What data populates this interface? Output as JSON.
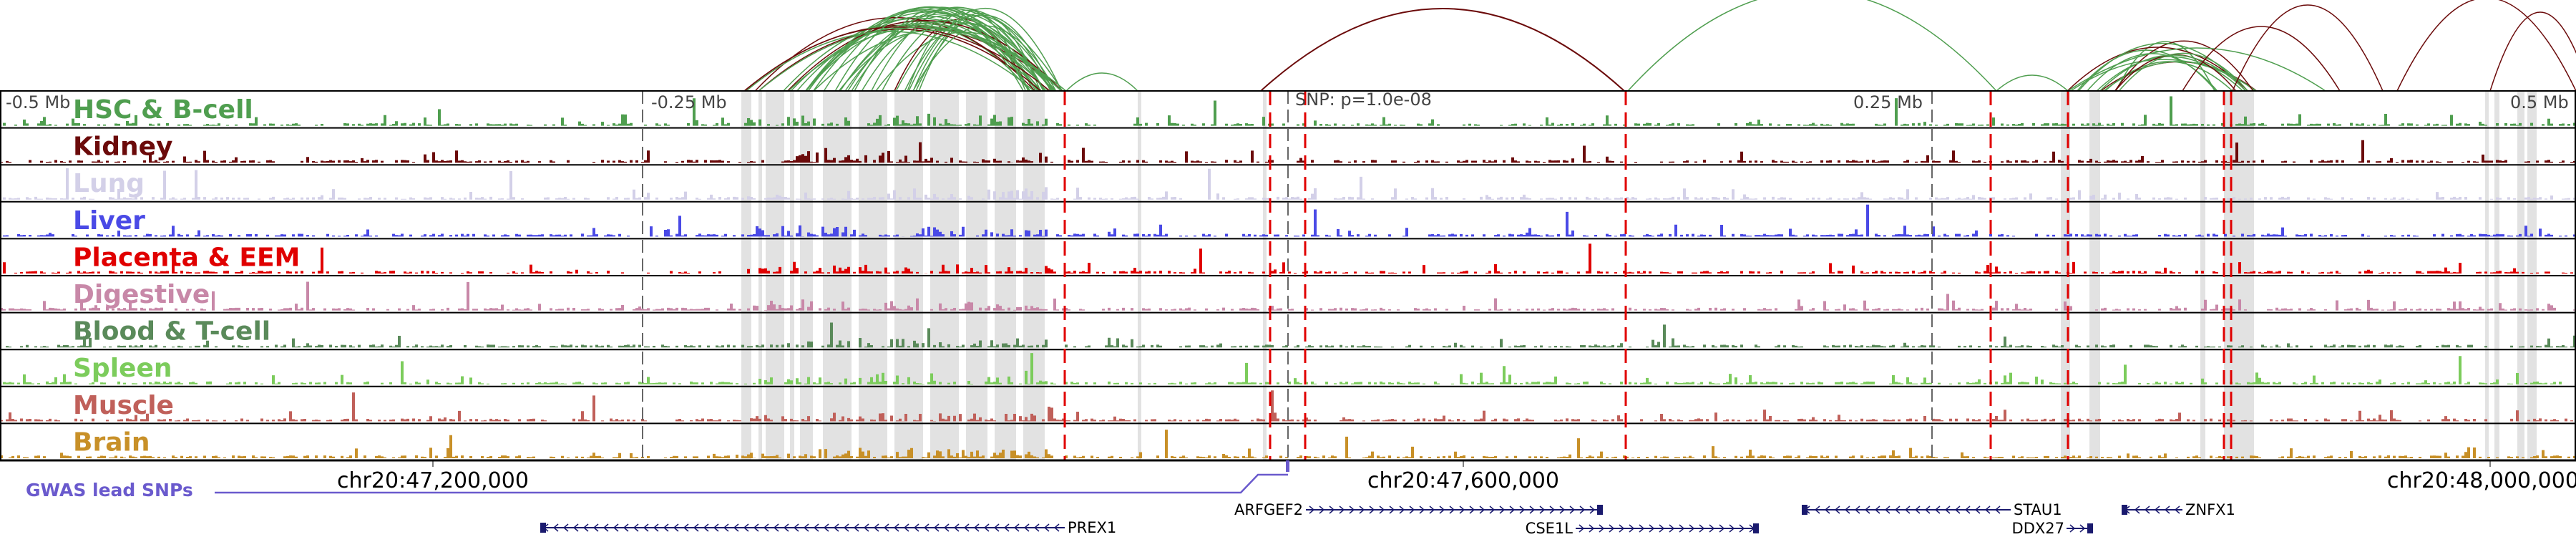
{
  "tracks": [
    {
      "name": "HSC & B-cell",
      "color": "#4f9e4f"
    },
    {
      "name": "Kidney",
      "color": "#6b0a0a"
    },
    {
      "name": "Lung",
      "color": "#d3d0e8"
    },
    {
      "name": "Liver",
      "color": "#4a4ae6"
    },
    {
      "name": "Placenta & EEM",
      "color": "#e00000"
    },
    {
      "name": "Digestive",
      "color": "#c888a8"
    },
    {
      "name": "Blood & T-cell",
      "color": "#5a8a5a"
    },
    {
      "name": "Spleen",
      "color": "#7ccc5c"
    },
    {
      "name": "Muscle",
      "color": "#c0605a"
    },
    {
      "name": "Brain",
      "color": "#c89028"
    }
  ],
  "distance_labels": [
    "-0.5 Mb",
    "-0.25 Mb",
    "0.25 Mb",
    "0.5 Mb"
  ],
  "snp_label": "SNP: p=1.0e-08",
  "coordinates": [
    "chr20:47,200,000",
    "chr20:47,600,000",
    "chr20:48,000,000"
  ],
  "gwas_label": "GWAS lead SNPs",
  "genes": [
    "PREX1",
    "ARFGEF2",
    "CSE1L",
    "STAU1",
    "DDX27",
    "ZNFX1"
  ],
  "colors": {
    "gwas": "#6a5acd",
    "gene": "#1a1a6e",
    "snp_line": "#e00000",
    "shade": "#e2e2e2"
  }
}
